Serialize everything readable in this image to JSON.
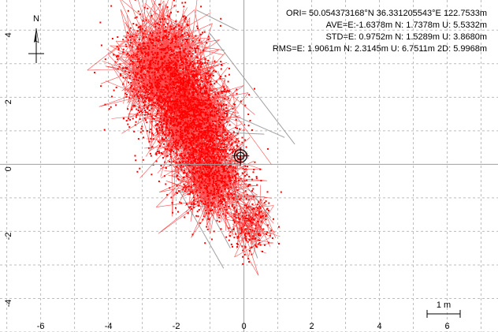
{
  "stats": {
    "ori": "ORI= 50.054373168°N   36.331205543°E 122.7533m",
    "ave": "AVE=E:-1.6378m N: 1.7378m U: 5.5332m",
    "std": "STD=E: 0.9752m N: 1.5289m U: 3.8680m",
    "rms": "RMS=E: 1.9061m N: 2.3145m U: 6.7511m 2D: 5.9968m"
  },
  "compass": {
    "label": "N",
    "icon": "north-arrow-icon"
  },
  "scale_bar": {
    "label": "1 m"
  },
  "colors": {
    "points": "#ff0000",
    "tracks": "#a0a0a0",
    "grid": "#bdbdbd",
    "axis": "#a0a0a0",
    "background": "#ffffff"
  },
  "chart_data": {
    "type": "scatter",
    "title": "",
    "xlabel": "",
    "ylabel": "",
    "xlim": [
      -7.2,
      7.5
    ],
    "ylim": [
      -5.0,
      4.9
    ],
    "xticks": [
      -6,
      -4,
      -2,
      0,
      2,
      4,
      6
    ],
    "yticks": [
      -4,
      -2,
      0,
      2,
      4
    ],
    "grid": true,
    "reference_marker": [
      -0.1,
      0.25
    ],
    "clusters": [
      {
        "center": [
          -2.4,
          2.9
        ],
        "spread": [
          0.7,
          0.9
        ],
        "count": 900
      },
      {
        "center": [
          -1.5,
          1.3
        ],
        "spread": [
          0.6,
          0.8
        ],
        "count": 1100
      },
      {
        "center": [
          -0.9,
          -0.4
        ],
        "spread": [
          0.55,
          0.7
        ],
        "count": 600
      },
      {
        "center": [
          0.2,
          -1.8
        ],
        "spread": [
          0.35,
          0.5
        ],
        "count": 180
      }
    ],
    "outlier_tracks": [
      [
        [
          -1.0,
          3.9
        ],
        [
          1.5,
          0.6
        ]
      ],
      [
        [
          -1.5,
          2.0
        ],
        [
          1.2,
          0.8
        ]
      ],
      [
        [
          -1.9,
          -0.8
        ],
        [
          -0.6,
          -3.1
        ]
      ],
      [
        [
          -1.2,
          -1.0
        ],
        [
          -0.4,
          -2.5
        ]
      ],
      [
        [
          -1.4,
          4.6
        ],
        [
          -0.2,
          4.0
        ]
      ],
      [
        [
          -0.8,
          0.5
        ],
        [
          0.8,
          -1.6
        ]
      ],
      [
        [
          -1.6,
          1.0
        ],
        [
          0.6,
          0.9
        ]
      ],
      [
        [
          -0.6,
          0.2
        ],
        [
          0.4,
          -2.8
        ]
      ]
    ]
  }
}
